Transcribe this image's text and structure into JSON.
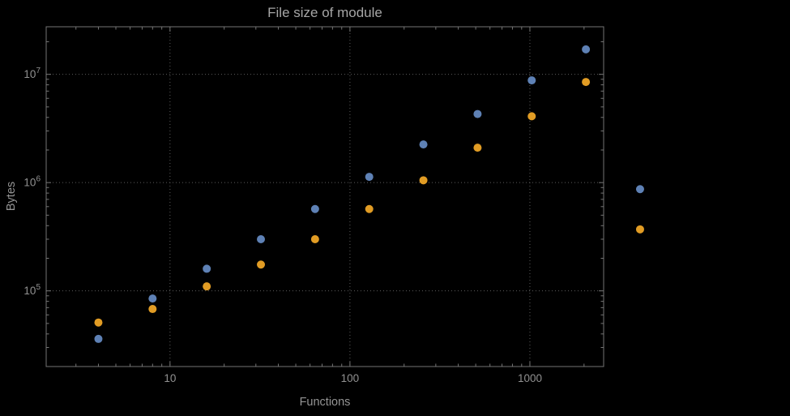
{
  "chart_data": {
    "type": "scatter",
    "title": "File size of module",
    "xlabel": "Functions",
    "ylabel": "Bytes",
    "xscale": "log",
    "yscale": "log",
    "xlim": [
      2.05,
      2570
    ],
    "ylim": [
      20000,
      27500000
    ],
    "grid": "dotted lines at decade ticks, both axes",
    "legend": "none",
    "x": [
      4,
      8,
      16,
      32,
      64,
      128,
      256,
      512,
      1024,
      2048,
      4096
    ],
    "series": [
      {
        "name": "blue",
        "color": "#5e81b5",
        "values": [
          36000,
          85000,
          160000,
          300000,
          570000,
          1130000,
          2250000,
          4300000,
          8800000,
          17000000,
          870000
        ]
      },
      {
        "name": "orange",
        "color": "#e19c24",
        "values": [
          51000,
          68000,
          110000,
          175000,
          300000,
          570000,
          1050000,
          2100000,
          4100000,
          8500000,
          370000
        ]
      }
    ],
    "x_ticks": {
      "major": [
        {
          "value": 10,
          "label": "10"
        },
        {
          "value": 100,
          "label": "100"
        },
        {
          "value": 1000,
          "label": "1000"
        }
      ],
      "minor": [
        3,
        4,
        5,
        6,
        7,
        8,
        9,
        20,
        30,
        40,
        50,
        60,
        70,
        80,
        90,
        200,
        300,
        400,
        500,
        600,
        700,
        800,
        900,
        2000
      ]
    },
    "y_ticks": {
      "major": [
        {
          "value": 100000,
          "base": "10",
          "exp": "5"
        },
        {
          "value": 1000000,
          "base": "10",
          "exp": "6"
        },
        {
          "value": 10000000,
          "base": "10",
          "exp": "7"
        }
      ],
      "minor": [
        30000,
        40000,
        50000,
        60000,
        70000,
        80000,
        90000,
        200000,
        300000,
        400000,
        500000,
        600000,
        700000,
        800000,
        900000,
        2000000,
        3000000,
        4000000,
        5000000,
        6000000,
        7000000,
        8000000,
        9000000,
        20000000
      ]
    },
    "colors": {
      "background": "#000000",
      "frame": "#757575",
      "grid": "#5c5c5c",
      "text": "#919191",
      "title": "#a6a6a6"
    }
  }
}
